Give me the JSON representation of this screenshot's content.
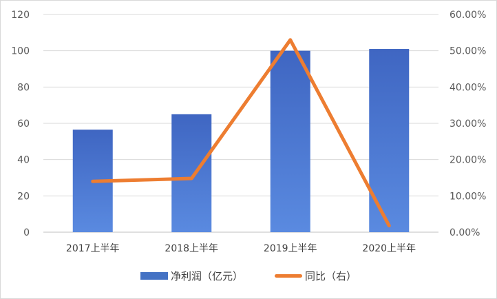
{
  "chart_data": {
    "type": "bar",
    "categories": [
      "2017上半年",
      "2018上半年",
      "2019上半年",
      "2020上半年"
    ],
    "series": [
      {
        "name": "净利润（亿元）",
        "type": "bar",
        "axis": "left",
        "values": [
          56.5,
          65,
          100,
          101
        ],
        "color": "#4472c4"
      },
      {
        "name": "同比（右）",
        "type": "line",
        "axis": "right",
        "values": [
          0.14,
          0.148,
          0.53,
          0.018
        ],
        "color": "#ed7d31"
      }
    ],
    "y_left": {
      "ylim": [
        0,
        120
      ],
      "ticks": [
        "0",
        "20",
        "40",
        "60",
        "80",
        "100",
        "120"
      ]
    },
    "y_right": {
      "ylim": [
        0,
        0.6
      ],
      "ticks": [
        "0.00%",
        "10.00%",
        "20.00%",
        "30.00%",
        "40.00%",
        "50.00%",
        "60.00%"
      ]
    },
    "grid": true,
    "legend_position": "bottom",
    "title": "",
    "xlabel": "",
    "ylabel": ""
  }
}
